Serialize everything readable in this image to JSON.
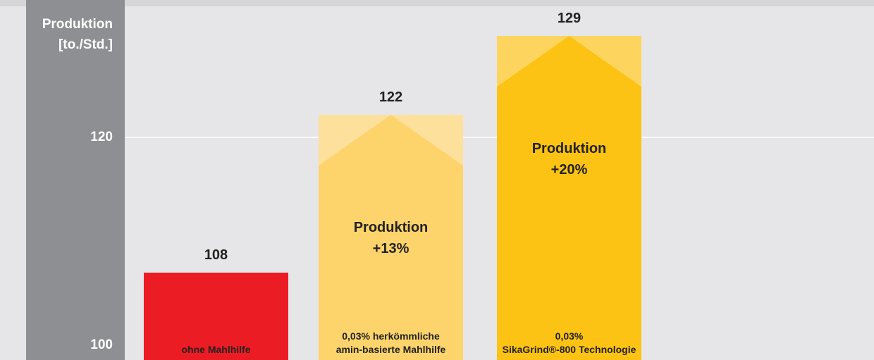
{
  "chart_data": {
    "type": "bar",
    "y_label": "Produktion\n[to./Std.]",
    "categories": [
      "ohne Mahlhilfe",
      "0,03% herkömmliche\namin-basierte Mahlhilfe",
      "0,03%\nSikaGrind®-800 Technologie"
    ],
    "values": [
      108,
      122,
      129
    ],
    "colors": [
      "#ec1c24",
      "#fdd36b",
      "#fdc314"
    ],
    "highlight_colors": [
      null,
      "#fde09c",
      "#fdd55e"
    ],
    "bar_labels": [
      null,
      "Produktion\n+13%",
      "Produktion\n+20%"
    ],
    "ylim": [
      100,
      132
    ],
    "yticks": [
      100,
      120
    ],
    "grid": true
  }
}
